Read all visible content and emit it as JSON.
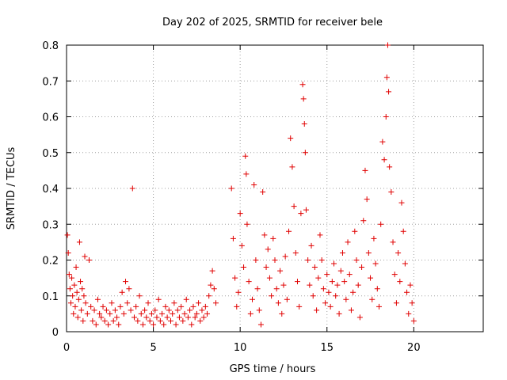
{
  "chart_data": {
    "type": "scatter",
    "title": "Day 202 of 2025, SRMTID for receiver bele",
    "xlabel": "GPS time / hours",
    "ylabel": "SRMTID / TECUs",
    "xlim": [
      0,
      24
    ],
    "ylim": [
      0,
      0.8
    ],
    "xticks": [
      0,
      5,
      10,
      15,
      20
    ],
    "xtick_labels": [
      "0",
      "5",
      "10",
      "15",
      "20"
    ],
    "yticks": [
      0,
      0.1,
      0.2,
      0.3,
      0.4,
      0.5,
      0.6,
      0.7,
      0.8
    ],
    "ytick_labels": [
      "0",
      "0.1",
      "0.2",
      "0.3",
      "0.4",
      "0.5",
      "0.6",
      "0.7",
      "0.8"
    ],
    "grid": true,
    "marker": "+",
    "series": [
      {
        "name": "SRMTID",
        "color": "#e00000",
        "points": [
          [
            0.05,
            0.27
          ],
          [
            0.1,
            0.22
          ],
          [
            0.15,
            0.16
          ],
          [
            0.2,
            0.12
          ],
          [
            0.25,
            0.08
          ],
          [
            0.3,
            0.15
          ],
          [
            0.35,
            0.1
          ],
          [
            0.4,
            0.05
          ],
          [
            0.45,
            0.13
          ],
          [
            0.5,
            0.07
          ],
          [
            0.55,
            0.18
          ],
          [
            0.6,
            0.11
          ],
          [
            0.65,
            0.04
          ],
          [
            0.7,
            0.09
          ],
          [
            0.75,
            0.25
          ],
          [
            0.8,
            0.14
          ],
          [
            0.85,
            0.06
          ],
          [
            0.9,
            0.12
          ],
          [
            0.95,
            0.03
          ],
          [
            1.0,
            0.1
          ],
          [
            1.05,
            0.21
          ],
          [
            1.1,
            0.08
          ],
          [
            1.2,
            0.05
          ],
          [
            1.3,
            0.2
          ],
          [
            1.4,
            0.07
          ],
          [
            1.5,
            0.03
          ],
          [
            1.6,
            0.06
          ],
          [
            1.7,
            0.02
          ],
          [
            1.8,
            0.09
          ],
          [
            1.9,
            0.05
          ],
          [
            2.0,
            0.04
          ],
          [
            2.1,
            0.07
          ],
          [
            2.2,
            0.03
          ],
          [
            2.3,
            0.06
          ],
          [
            2.4,
            0.02
          ],
          [
            2.5,
            0.05
          ],
          [
            2.6,
            0.08
          ],
          [
            2.7,
            0.03
          ],
          [
            2.8,
            0.06
          ],
          [
            2.9,
            0.04
          ],
          [
            3.0,
            0.02
          ],
          [
            3.1,
            0.07
          ],
          [
            3.2,
            0.11
          ],
          [
            3.3,
            0.05
          ],
          [
            3.4,
            0.14
          ],
          [
            3.5,
            0.08
          ],
          [
            3.6,
            0.12
          ],
          [
            3.7,
            0.06
          ],
          [
            3.8,
            0.4
          ],
          [
            3.9,
            0.04
          ],
          [
            4.0,
            0.07
          ],
          [
            4.1,
            0.03
          ],
          [
            4.2,
            0.1
          ],
          [
            4.3,
            0.05
          ],
          [
            4.4,
            0.02
          ],
          [
            4.5,
            0.06
          ],
          [
            4.6,
            0.04
          ],
          [
            4.7,
            0.08
          ],
          [
            4.8,
            0.03
          ],
          [
            4.9,
            0.05
          ],
          [
            5.0,
            0.02
          ],
          [
            5.1,
            0.06
          ],
          [
            5.2,
            0.04
          ],
          [
            5.3,
            0.09
          ],
          [
            5.4,
            0.03
          ],
          [
            5.5,
            0.05
          ],
          [
            5.6,
            0.02
          ],
          [
            5.7,
            0.07
          ],
          [
            5.8,
            0.04
          ],
          [
            5.9,
            0.06
          ],
          [
            6.0,
            0.03
          ],
          [
            6.1,
            0.05
          ],
          [
            6.2,
            0.08
          ],
          [
            6.3,
            0.02
          ],
          [
            6.4,
            0.06
          ],
          [
            6.5,
            0.04
          ],
          [
            6.6,
            0.07
          ],
          [
            6.7,
            0.03
          ],
          [
            6.8,
            0.05
          ],
          [
            6.9,
            0.09
          ],
          [
            7.0,
            0.04
          ],
          [
            7.1,
            0.06
          ],
          [
            7.2,
            0.02
          ],
          [
            7.3,
            0.07
          ],
          [
            7.4,
            0.04
          ],
          [
            7.5,
            0.05
          ],
          [
            7.6,
            0.08
          ],
          [
            7.7,
            0.03
          ],
          [
            7.8,
            0.06
          ],
          [
            7.9,
            0.04
          ],
          [
            8.0,
            0.07
          ],
          [
            8.1,
            0.05
          ],
          [
            8.2,
            0.1
          ],
          [
            8.3,
            0.13
          ],
          [
            8.4,
            0.17
          ],
          [
            8.5,
            0.12
          ],
          [
            8.6,
            0.08
          ],
          [
            9.5,
            0.4
          ],
          [
            9.6,
            0.26
          ],
          [
            9.7,
            0.15
          ],
          [
            9.8,
            0.07
          ],
          [
            9.9,
            0.11
          ],
          [
            10.0,
            0.33
          ],
          [
            10.1,
            0.24
          ],
          [
            10.2,
            0.18
          ],
          [
            10.3,
            0.49
          ],
          [
            10.35,
            0.44
          ],
          [
            10.4,
            0.3
          ],
          [
            10.5,
            0.14
          ],
          [
            10.6,
            0.05
          ],
          [
            10.7,
            0.09
          ],
          [
            10.8,
            0.41
          ],
          [
            10.9,
            0.2
          ],
          [
            11.0,
            0.12
          ],
          [
            11.1,
            0.06
          ],
          [
            11.2,
            0.02
          ],
          [
            11.3,
            0.39
          ],
          [
            11.4,
            0.27
          ],
          [
            11.5,
            0.18
          ],
          [
            11.6,
            0.23
          ],
          [
            11.7,
            0.15
          ],
          [
            11.8,
            0.1
          ],
          [
            11.9,
            0.26
          ],
          [
            12.0,
            0.2
          ],
          [
            12.1,
            0.12
          ],
          [
            12.2,
            0.08
          ],
          [
            12.3,
            0.17
          ],
          [
            12.4,
            0.05
          ],
          [
            12.5,
            0.13
          ],
          [
            12.6,
            0.21
          ],
          [
            12.7,
            0.09
          ],
          [
            12.8,
            0.28
          ],
          [
            12.9,
            0.54
          ],
          [
            13.0,
            0.46
          ],
          [
            13.1,
            0.35
          ],
          [
            13.2,
            0.22
          ],
          [
            13.3,
            0.14
          ],
          [
            13.4,
            0.07
          ],
          [
            13.5,
            0.33
          ],
          [
            13.6,
            0.69
          ],
          [
            13.65,
            0.65
          ],
          [
            13.7,
            0.58
          ],
          [
            13.75,
            0.5
          ],
          [
            13.8,
            0.34
          ],
          [
            13.9,
            0.2
          ],
          [
            14.0,
            0.13
          ],
          [
            14.1,
            0.24
          ],
          [
            14.2,
            0.1
          ],
          [
            14.3,
            0.18
          ],
          [
            14.4,
            0.06
          ],
          [
            14.5,
            0.15
          ],
          [
            14.6,
            0.27
          ],
          [
            14.7,
            0.2
          ],
          [
            14.8,
            0.12
          ],
          [
            14.9,
            0.08
          ],
          [
            15.0,
            0.16
          ],
          [
            15.1,
            0.11
          ],
          [
            15.2,
            0.07
          ],
          [
            15.3,
            0.14
          ],
          [
            15.4,
            0.19
          ],
          [
            15.5,
            0.1
          ],
          [
            15.6,
            0.13
          ],
          [
            15.7,
            0.05
          ],
          [
            15.8,
            0.17
          ],
          [
            15.9,
            0.22
          ],
          [
            16.0,
            0.14
          ],
          [
            16.1,
            0.09
          ],
          [
            16.2,
            0.25
          ],
          [
            16.3,
            0.16
          ],
          [
            16.4,
            0.06
          ],
          [
            16.5,
            0.11
          ],
          [
            16.6,
            0.28
          ],
          [
            16.7,
            0.2
          ],
          [
            16.8,
            0.13
          ],
          [
            16.9,
            0.04
          ],
          [
            17.0,
            0.18
          ],
          [
            17.1,
            0.31
          ],
          [
            17.2,
            0.45
          ],
          [
            17.3,
            0.37
          ],
          [
            17.4,
            0.22
          ],
          [
            17.5,
            0.15
          ],
          [
            17.6,
            0.09
          ],
          [
            17.7,
            0.26
          ],
          [
            17.8,
            0.19
          ],
          [
            17.9,
            0.12
          ],
          [
            18.0,
            0.07
          ],
          [
            18.1,
            0.3
          ],
          [
            18.2,
            0.53
          ],
          [
            18.3,
            0.48
          ],
          [
            18.4,
            0.6
          ],
          [
            18.45,
            0.71
          ],
          [
            18.5,
            0.8
          ],
          [
            18.55,
            0.67
          ],
          [
            18.6,
            0.46
          ],
          [
            18.7,
            0.39
          ],
          [
            18.8,
            0.25
          ],
          [
            18.9,
            0.16
          ],
          [
            19.0,
            0.08
          ],
          [
            19.1,
            0.22
          ],
          [
            19.2,
            0.14
          ],
          [
            19.3,
            0.36
          ],
          [
            19.4,
            0.28
          ],
          [
            19.5,
            0.19
          ],
          [
            19.6,
            0.11
          ],
          [
            19.7,
            0.05
          ],
          [
            19.8,
            0.13
          ],
          [
            19.9,
            0.08
          ],
          [
            20.0,
            0.03
          ]
        ]
      }
    ]
  }
}
